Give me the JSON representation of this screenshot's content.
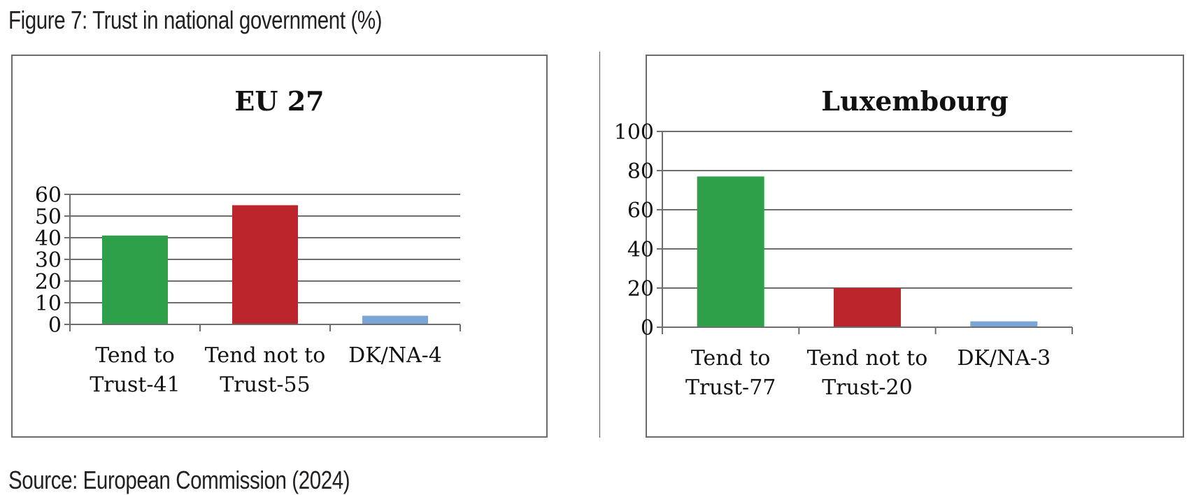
{
  "figure_title": "Figure 7: Trust in national government (%)",
  "source": "Source: European Commission (2024)",
  "colors": {
    "trust": "#2ea04a",
    "not_trust": "#bc252b",
    "dkna": "#7aa6d6",
    "grid": "#6e6e6e"
  },
  "chart_data": [
    {
      "type": "bar",
      "title": "EU 27",
      "categories": [
        [
          "Tend to",
          "Trust-41"
        ],
        [
          "Tend not to",
          "Trust-55"
        ],
        [
          "DK/NA-4"
        ]
      ],
      "values": [
        41,
        55,
        4
      ],
      "ylim": [
        0,
        60
      ],
      "yticks": [
        0,
        10,
        20,
        30,
        40,
        50,
        60
      ],
      "grid": true,
      "xlabel": "",
      "ylabel": ""
    },
    {
      "type": "bar",
      "title": "Luxembourg",
      "categories": [
        [
          "Tend to",
          "Trust-77"
        ],
        [
          "Tend not to",
          "Trust-20"
        ],
        [
          "DK/NA-3"
        ]
      ],
      "values": [
        77,
        20,
        3
      ],
      "ylim": [
        0,
        100
      ],
      "yticks": [
        0,
        20,
        40,
        60,
        80,
        100
      ],
      "grid": true,
      "xlabel": "",
      "ylabel": ""
    }
  ]
}
